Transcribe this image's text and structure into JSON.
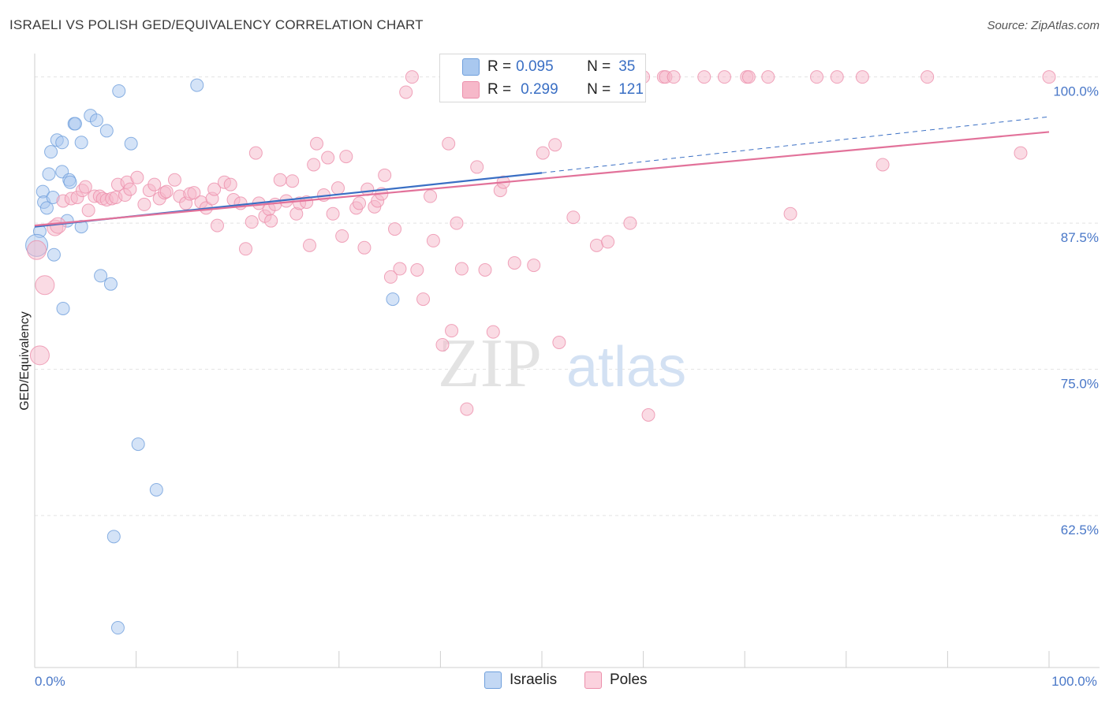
{
  "header": {
    "title": "ISRAELI VS POLISH GED/EQUIVALENCY CORRELATION CHART",
    "source": "Source: ZipAtlas.com"
  },
  "legend": {
    "rows": [
      {
        "r_label": "R =",
        "r_value": "0.095",
        "n_label": "N =",
        "n_value": "35",
        "color": "#a9c8ef"
      },
      {
        "r_label": "R =",
        "r_value": "0.299",
        "n_label": "N =",
        "n_value": "121",
        "color": "#f6b8c9"
      }
    ]
  },
  "bottom_legend": [
    {
      "label": "Israelis",
      "color": "#a9c8ef"
    },
    {
      "label": "Poles",
      "color": "#f6b8c9"
    }
  ],
  "watermark": {
    "part1": "ZIP",
    "part2": "atlas"
  },
  "chart_data": {
    "type": "scatter",
    "ylabel": "GED/Equivalency",
    "xlim": [
      0,
      100
    ],
    "ylim": [
      49.5,
      102
    ],
    "y_ticks": [
      {
        "value": 100.0,
        "label": "100.0%"
      },
      {
        "value": 87.5,
        "label": "87.5%"
      },
      {
        "value": 75.0,
        "label": "75.0%"
      },
      {
        "value": 62.5,
        "label": "62.5%"
      }
    ],
    "x_tick_labels": [
      {
        "value": 0,
        "label": "0.0%"
      },
      {
        "value": 100,
        "label": "100.0%"
      }
    ],
    "grid": true,
    "series": [
      {
        "name": "Israelis",
        "color": "#a9c8ef",
        "stroke": "#6f9fdc",
        "trend": {
          "x0": 0,
          "y0": 87.2,
          "x1": 50,
          "y1": 91.8,
          "dash_x1": 100,
          "dash_y1": 96.6,
          "color": "#3a6fc4"
        },
        "points": [
          [
            0.5,
            86.8,
            8
          ],
          [
            0.2,
            85.6,
            14
          ],
          [
            0.8,
            90.2,
            8
          ],
          [
            0.9,
            89.3,
            8
          ],
          [
            1.2,
            88.8,
            8
          ],
          [
            1.4,
            91.7,
            8
          ],
          [
            1.6,
            93.6,
            8
          ],
          [
            1.8,
            89.7,
            8
          ],
          [
            1.9,
            84.8,
            8
          ],
          [
            2.2,
            94.6,
            8
          ],
          [
            2.7,
            94.4,
            8
          ],
          [
            2.7,
            91.9,
            8
          ],
          [
            2.8,
            80.2,
            8
          ],
          [
            3.2,
            87.7,
            8
          ],
          [
            3.4,
            91.2,
            8
          ],
          [
            3.5,
            91.0,
            8
          ],
          [
            3.9,
            96.0,
            8
          ],
          [
            4.0,
            96.0,
            8
          ],
          [
            4.6,
            94.4,
            8
          ],
          [
            4.6,
            87.2,
            8
          ],
          [
            5.5,
            96.7,
            8
          ],
          [
            6.1,
            96.3,
            8
          ],
          [
            6.5,
            83.0,
            8
          ],
          [
            7.1,
            95.4,
            8
          ],
          [
            7.5,
            82.3,
            8
          ],
          [
            7.8,
            60.7,
            8
          ],
          [
            8.2,
            52.9,
            8
          ],
          [
            8.3,
            98.8,
            8
          ],
          [
            9.5,
            94.3,
            8
          ],
          [
            10.2,
            68.6,
            8
          ],
          [
            12.0,
            64.7,
            8
          ],
          [
            16.0,
            99.3,
            8
          ],
          [
            35.3,
            81.0,
            8
          ],
          [
            43.4,
            100.0,
            8
          ],
          [
            45.5,
            100.0,
            8
          ]
        ]
      },
      {
        "name": "Poles",
        "color": "#f6b8c9",
        "stroke": "#ec8fab",
        "trend": {
          "x0": 0,
          "y0": 87.3,
          "x1": 100,
          "y1": 95.3,
          "color": "#e2729a"
        },
        "points": [
          [
            0.2,
            85.2,
            12
          ],
          [
            0.5,
            76.2,
            12
          ],
          [
            1.0,
            82.2,
            12
          ],
          [
            2.0,
            87.1,
            10
          ],
          [
            2.3,
            87.3,
            10
          ],
          [
            2.8,
            89.4,
            8
          ],
          [
            3.6,
            89.6,
            8
          ],
          [
            4.2,
            89.7,
            8
          ],
          [
            4.7,
            90.3,
            8
          ],
          [
            5.0,
            90.6,
            8
          ],
          [
            5.3,
            88.6,
            8
          ],
          [
            5.9,
            89.8,
            8
          ],
          [
            6.4,
            89.8,
            8
          ],
          [
            6.7,
            89.6,
            8
          ],
          [
            7.1,
            89.5,
            8
          ],
          [
            7.6,
            89.6,
            8
          ],
          [
            8.0,
            89.7,
            8
          ],
          [
            8.2,
            90.8,
            8
          ],
          [
            8.9,
            89.9,
            8
          ],
          [
            9.1,
            91.0,
            8
          ],
          [
            9.4,
            90.4,
            8
          ],
          [
            10.1,
            91.4,
            8
          ],
          [
            10.8,
            89.1,
            8
          ],
          [
            11.3,
            90.3,
            8
          ],
          [
            11.8,
            90.8,
            8
          ],
          [
            12.3,
            89.6,
            8
          ],
          [
            12.8,
            90.1,
            8
          ],
          [
            13.0,
            90.2,
            8
          ],
          [
            13.8,
            91.2,
            8
          ],
          [
            14.3,
            89.8,
            8
          ],
          [
            14.9,
            89.2,
            8
          ],
          [
            15.3,
            90.0,
            8
          ],
          [
            15.7,
            90.1,
            8
          ],
          [
            16.4,
            89.3,
            8
          ],
          [
            16.9,
            88.8,
            8
          ],
          [
            17.5,
            89.6,
            8
          ],
          [
            17.7,
            90.4,
            8
          ],
          [
            18.0,
            87.3,
            8
          ],
          [
            18.7,
            91.0,
            8
          ],
          [
            19.3,
            90.8,
            8
          ],
          [
            19.6,
            89.5,
            8
          ],
          [
            20.3,
            89.2,
            8
          ],
          [
            20.8,
            85.3,
            8
          ],
          [
            21.4,
            87.6,
            8
          ],
          [
            21.8,
            93.5,
            8
          ],
          [
            22.1,
            89.2,
            8
          ],
          [
            22.7,
            88.1,
            8
          ],
          [
            23.1,
            88.7,
            8
          ],
          [
            23.3,
            87.7,
            8
          ],
          [
            23.7,
            89.1,
            8
          ],
          [
            24.2,
            91.2,
            8
          ],
          [
            24.8,
            89.4,
            8
          ],
          [
            25.4,
            91.1,
            8
          ],
          [
            25.8,
            88.3,
            8
          ],
          [
            26.1,
            89.2,
            8
          ],
          [
            26.8,
            89.3,
            8
          ],
          [
            27.1,
            85.6,
            8
          ],
          [
            27.5,
            92.5,
            8
          ],
          [
            27.8,
            94.3,
            8
          ],
          [
            28.5,
            89.9,
            8
          ],
          [
            28.9,
            93.1,
            8
          ],
          [
            29.4,
            88.3,
            8
          ],
          [
            29.9,
            90.5,
            8
          ],
          [
            30.3,
            86.4,
            8
          ],
          [
            30.7,
            93.2,
            8
          ],
          [
            31.7,
            88.8,
            8
          ],
          [
            32.0,
            89.2,
            8
          ],
          [
            32.5,
            85.4,
            8
          ],
          [
            32.8,
            90.4,
            8
          ],
          [
            33.5,
            88.9,
            8
          ],
          [
            33.8,
            89.4,
            8
          ],
          [
            34.2,
            90.0,
            8
          ],
          [
            34.5,
            91.6,
            8
          ],
          [
            35.1,
            82.9,
            8
          ],
          [
            35.5,
            87.0,
            8
          ],
          [
            36.0,
            83.6,
            8
          ],
          [
            36.6,
            98.7,
            8
          ],
          [
            37.2,
            100.0,
            8
          ],
          [
            37.7,
            83.5,
            8
          ],
          [
            38.3,
            81.0,
            8
          ],
          [
            39.0,
            89.8,
            8
          ],
          [
            39.3,
            86.0,
            8
          ],
          [
            40.2,
            77.1,
            8
          ],
          [
            40.8,
            94.3,
            8
          ],
          [
            41.1,
            78.3,
            8
          ],
          [
            41.6,
            87.5,
            8
          ],
          [
            42.1,
            83.6,
            8
          ],
          [
            42.6,
            71.6,
            8
          ],
          [
            43.6,
            92.3,
            8
          ],
          [
            44.4,
            83.5,
            8
          ],
          [
            45.2,
            78.2,
            8
          ],
          [
            45.9,
            90.3,
            8
          ],
          [
            46.2,
            91.0,
            8
          ],
          [
            47.3,
            84.1,
            8
          ],
          [
            48.1,
            100.0,
            8
          ],
          [
            49.2,
            83.9,
            8
          ],
          [
            50.1,
            93.5,
            8
          ],
          [
            51.3,
            94.2,
            8
          ],
          [
            51.7,
            77.3,
            8
          ],
          [
            53.1,
            88.0,
            8
          ],
          [
            54.5,
            100.0,
            8
          ],
          [
            55.4,
            85.6,
            8
          ],
          [
            56.5,
            85.9,
            8
          ],
          [
            57.5,
            100.0,
            8
          ],
          [
            58.7,
            87.5,
            8
          ],
          [
            60.0,
            100.0,
            8
          ],
          [
            60.5,
            71.1,
            8
          ],
          [
            62.0,
            100.0,
            8
          ],
          [
            62.2,
            100.0,
            8
          ],
          [
            63.0,
            100.0,
            8
          ],
          [
            66.0,
            100.0,
            8
          ],
          [
            68.0,
            100.0,
            8
          ],
          [
            70.2,
            100.0,
            8
          ],
          [
            70.4,
            100.0,
            8
          ],
          [
            72.3,
            100.0,
            8
          ],
          [
            74.5,
            88.3,
            8
          ],
          [
            77.1,
            100.0,
            8
          ],
          [
            79.1,
            100.0,
            8
          ],
          [
            81.6,
            100.0,
            8
          ],
          [
            83.6,
            92.5,
            8
          ],
          [
            88.0,
            100.0,
            8
          ],
          [
            97.2,
            93.5,
            8
          ],
          [
            100.0,
            100.0,
            8
          ]
        ]
      }
    ]
  }
}
